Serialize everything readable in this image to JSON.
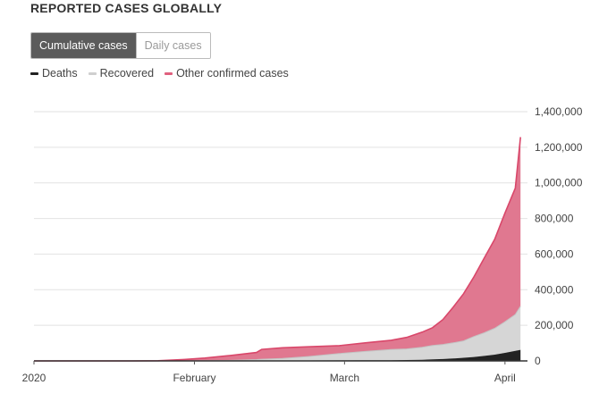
{
  "header": {
    "title": "REPORTED CASES GLOBALLY"
  },
  "toggle": {
    "active_label": "Cumulative cases",
    "inactive_label": "Daily cases"
  },
  "legend": [
    {
      "label": "Deaths",
      "color": "#222222"
    },
    {
      "label": "Recovered",
      "color": "#cfcfcf"
    },
    {
      "label": "Other confirmed cases",
      "color": "#e0607e"
    }
  ],
  "colors": {
    "deaths": "#222222",
    "recovered": "#d6d6d6",
    "other": "#e07890",
    "other_edge": "#d9476a",
    "grid": "#e2e2e2"
  },
  "chart_data": {
    "type": "area",
    "stacked": true,
    "title": "REPORTED CASES GLOBALLY",
    "mode": "cumulative",
    "x_tick_labels": [
      "2020",
      "February",
      "March",
      "April"
    ],
    "x_tick_dates": [
      "2020-01-01",
      "2020-02-01",
      "2020-03-01",
      "2020-04-01"
    ],
    "y_tick_labels": [
      "0",
      "200,000",
      "400,000",
      "600,000",
      "800,000",
      "1,000,000",
      "1,200,000",
      "1,400,000"
    ],
    "ylim": [
      0,
      1400000
    ],
    "xlim": [
      "2020-01-01",
      "2020-04-05"
    ],
    "y_axis_side": "right",
    "grid": true,
    "legend_position": "top-left",
    "x": [
      "2020-01-01",
      "2020-01-10",
      "2020-01-20",
      "2020-01-25",
      "2020-01-30",
      "2020-02-03",
      "2020-02-08",
      "2020-02-13",
      "2020-02-14",
      "2020-02-18",
      "2020-02-23",
      "2020-02-29",
      "2020-03-05",
      "2020-03-10",
      "2020-03-13",
      "2020-03-16",
      "2020-03-18",
      "2020-03-20",
      "2020-03-22",
      "2020-03-24",
      "2020-03-26",
      "2020-03-28",
      "2020-03-30",
      "2020-04-01",
      "2020-04-03",
      "2020-04-04"
    ],
    "series": [
      {
        "name": "Deaths",
        "values": [
          0,
          0,
          0,
          0,
          0,
          400,
          800,
          1400,
          1500,
          2000,
          2400,
          2900,
          3300,
          4000,
          5000,
          6500,
          8700,
          10500,
          13500,
          17500,
          22000,
          28000,
          35000,
          45000,
          56000,
          62000
        ]
      },
      {
        "name": "Recovered",
        "values": [
          0,
          0,
          0,
          0,
          100,
          500,
          2000,
          6000,
          8000,
          12000,
          22000,
          38000,
          50000,
          60000,
          62000,
          70000,
          78000,
          82000,
          88000,
          95000,
          115000,
          130000,
          148000,
          175000,
          205000,
          245000
        ]
      },
      {
        "name": "Other confirmed cases",
        "values": [
          0,
          0,
          0,
          1000,
          8000,
          15000,
          28000,
          40000,
          55000,
          60000,
          55000,
          45000,
          48000,
          52000,
          65000,
          85000,
          100000,
          140000,
          200000,
          265000,
          335000,
          420000,
          500000,
          610000,
          710000,
          950000
        ]
      }
    ]
  }
}
